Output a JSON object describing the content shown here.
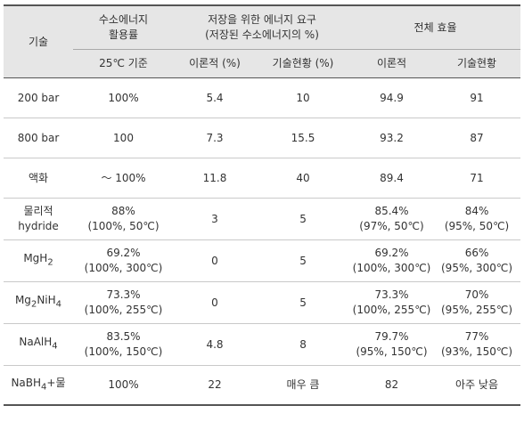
{
  "header": {
    "tech": "기술",
    "utilization": [
      "수소에너지",
      "활용률"
    ],
    "storage_energy": [
      "저장을 위한 에너지 요구",
      "(저장된 수소에너지의 %)"
    ],
    "efficiency": "전체 효율",
    "sub_basis": "25℃ 기준",
    "sub_theory1": "이론적 (%)",
    "sub_status1": "기술현황 (%)",
    "sub_theory2": "이론적",
    "sub_status2": "기술현황"
  },
  "rows": [
    {
      "tech": "200 bar",
      "util": "100%",
      "theory": "5.4",
      "status": "10",
      "eff_theory": "94.9",
      "eff_status": "91"
    },
    {
      "tech": "800 bar",
      "util": "100",
      "theory": "7.3",
      "status": "15.5",
      "eff_theory": "93.2",
      "eff_status": "87"
    },
    {
      "tech": "액화",
      "util": "～ 100%",
      "theory": "11.8",
      "status": "40",
      "eff_theory": "89.4",
      "eff_status": "71"
    },
    {
      "tech": "물리적",
      "tech2": "hydride",
      "util": "88%",
      "util2": "(100%, 50℃)",
      "theory": "3",
      "status": "5",
      "eff_theory": "85.4%",
      "eff_theory2": "(97%, 50℃)",
      "eff_status": "84%",
      "eff_status2": "(95%, 50℃)"
    },
    {
      "tech": "MgH",
      "tech_sub": "2",
      "util": "69.2%",
      "util2": "(100%, 300℃)",
      "theory": "0",
      "status": "5",
      "eff_theory": "69.2%",
      "eff_theory2": "(100%, 300℃)",
      "eff_status": "66%",
      "eff_status2": "(95%, 300℃)"
    },
    {
      "tech_a": "Mg",
      "tech_sub_a": "2",
      "tech_b": "NiH",
      "tech_sub_b": "4",
      "util": "73.3%",
      "util2": "(100%, 255℃)",
      "theory": "0",
      "status": "5",
      "eff_theory": "73.3%",
      "eff_theory2": "(100%, 255℃)",
      "eff_status": "70%",
      "eff_status2": "(95%, 255℃)"
    },
    {
      "tech": "NaAlH",
      "tech_sub": "4",
      "util": "83.5%",
      "util2": "(100%, 150℃)",
      "theory": "4.8",
      "status": "8",
      "eff_theory": "79.7%",
      "eff_theory2": "(95%, 150℃)",
      "eff_status": "77%",
      "eff_status2": "(93%, 150℃)"
    },
    {
      "tech": "NaBH",
      "tech_sub": "4",
      "tech_tail": "+물",
      "util": "100%",
      "theory": "22",
      "status": "매우 큼",
      "eff_theory": "82",
      "eff_status": "아주 낮음"
    }
  ]
}
